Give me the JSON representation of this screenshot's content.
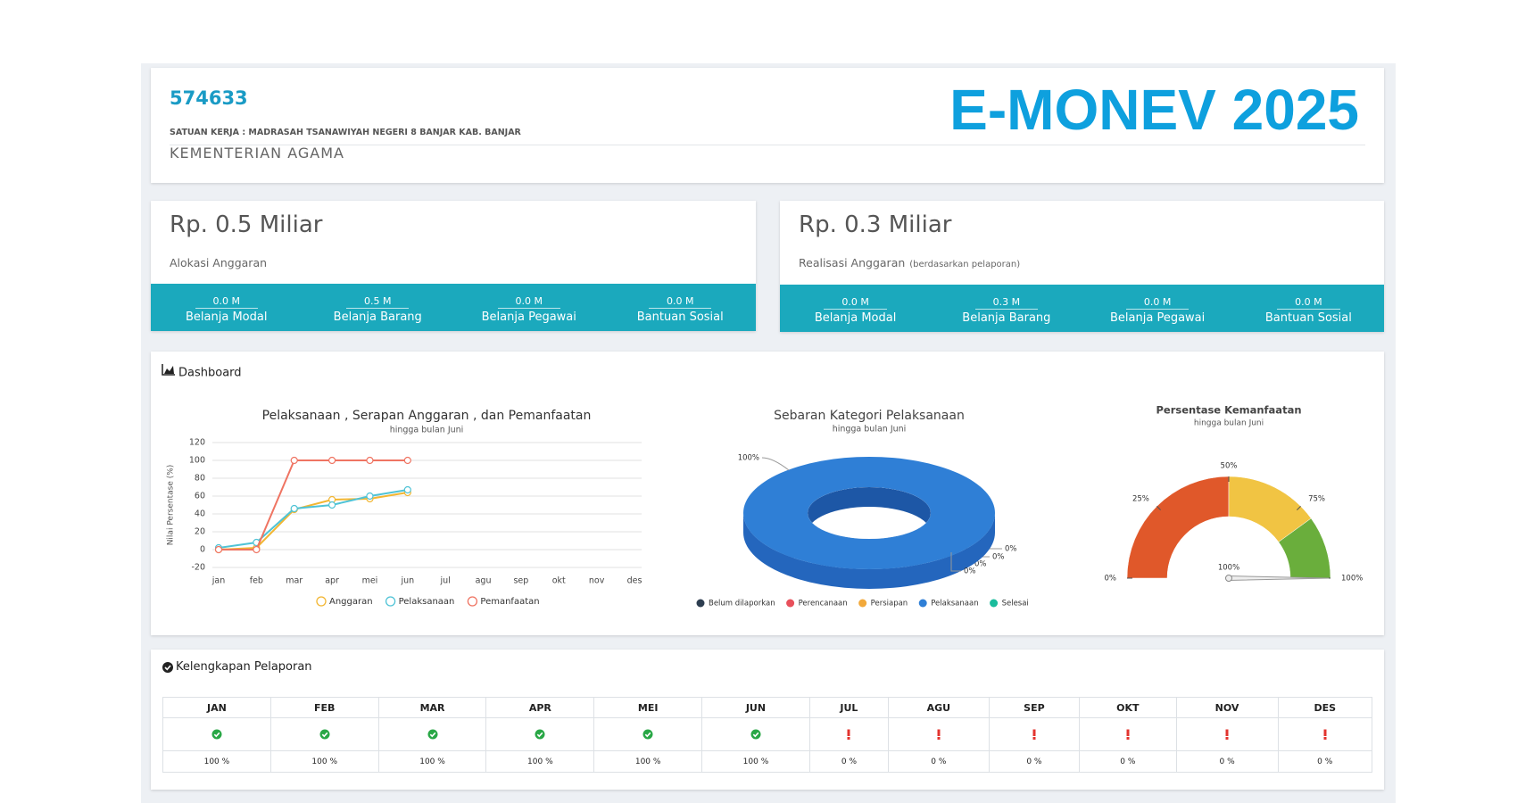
{
  "header": {
    "code": "574633",
    "unit": "SATUAN KERJA : MADRASAH TSANAWIYAH NEGERI 8 BANJAR KAB. BANJAR",
    "ministry": "KEMENTERIAN AGAMA",
    "brand": "E-MONEV 2025"
  },
  "cards": [
    {
      "amount": "Rp. 0.5 Miliar",
      "label": "Alokasi Anggaran",
      "items": [
        {
          "value": "0.0 M",
          "label": "Belanja Modal"
        },
        {
          "value": "0.5 M",
          "label": "Belanja Barang"
        },
        {
          "value": "0.0 M",
          "label": "Belanja Pegawai"
        },
        {
          "value": "0.0 M",
          "label": "Bantuan Sosial"
        }
      ]
    },
    {
      "amount": "Rp. 0.3 Miliar",
      "label": "Realisasi Anggaran",
      "note": "(berdasarkan pelaporan)",
      "items": [
        {
          "value": "0.0 M",
          "label": "Belanja Modal"
        },
        {
          "value": "0.3 M",
          "label": "Belanja Barang"
        },
        {
          "value": "0.0 M",
          "label": "Belanja Pegawai"
        },
        {
          "value": "0.0 M",
          "label": "Bantuan Sosial"
        }
      ]
    }
  ],
  "dashboard": {
    "title": "Dashboard"
  },
  "chart_data": [
    {
      "type": "line",
      "title": "Pelaksanaan , Serapan Anggaran , dan Pemanfaatan",
      "subtitle": "hingga bulan Juni",
      "y_label": "Nilai Persentase (%)",
      "categories": [
        "jan",
        "feb",
        "mar",
        "apr",
        "mei",
        "jun",
        "jul",
        "agu",
        "sep",
        "okt",
        "nov",
        "des"
      ],
      "ylim": [
        -20,
        120
      ],
      "yticks": [
        -20,
        0,
        20,
        40,
        60,
        80,
        100,
        120
      ],
      "grid": true,
      "series": [
        {
          "name": "Anggaran",
          "color": "#f2b632",
          "values": [
            0,
            2,
            45,
            56,
            57,
            64,
            null,
            null,
            null,
            null,
            null,
            null
          ]
        },
        {
          "name": "Pelaksanaan",
          "color": "#4fc3d6",
          "values": [
            2,
            8,
            46,
            50,
            60,
            67,
            null,
            null,
            null,
            null,
            null,
            null
          ]
        },
        {
          "name": "Pemanfaatan",
          "color": "#ef7462",
          "values": [
            0,
            0,
            100,
            100,
            100,
            100,
            null,
            null,
            null,
            null,
            null,
            null
          ]
        }
      ]
    },
    {
      "type": "pie",
      "title": "Sebaran Kategori Pelaksanaan",
      "subtitle": "hingga bulan Juni",
      "categories": [
        "Belum dilaporkan",
        "Perencanaan",
        "Persiapan",
        "Pelaksanaan",
        "Selesai"
      ],
      "values": [
        0,
        0,
        0,
        100,
        0
      ],
      "value_labels": [
        "0%",
        "0%",
        "0%",
        "100%",
        "0%"
      ],
      "colors": [
        "#2d3e50",
        "#e8505b",
        "#f2a93b",
        "#2f7fd6",
        "#1abc9c"
      ]
    },
    {
      "type": "gauge",
      "title": "Persentase Kemanfaatan",
      "subtitle": "hingga bulan Juni",
      "value": 100,
      "value_label": "100%",
      "ylim": [
        0,
        100
      ],
      "yticks": [
        {
          "value": 0,
          "label": "0%"
        },
        {
          "value": 25,
          "label": "25%"
        },
        {
          "value": 50,
          "label": "50%"
        },
        {
          "value": 75,
          "label": "75%"
        },
        {
          "value": 100,
          "label": "100%"
        }
      ],
      "bands": [
        {
          "from": 0,
          "to": 50,
          "color": "#e0582a"
        },
        {
          "from": 50,
          "to": 80,
          "color": "#f1c443"
        },
        {
          "from": 80,
          "to": 100,
          "color": "#6aae3c"
        }
      ]
    }
  ],
  "report": {
    "title": "Kelengkapan Pelaporan",
    "months": [
      "JAN",
      "FEB",
      "MAR",
      "APR",
      "MEI",
      "JUN",
      "JUL",
      "AGU",
      "SEP",
      "OKT",
      "NOV",
      "DES"
    ],
    "values": [
      100,
      100,
      100,
      100,
      100,
      100,
      0,
      0,
      0,
      0,
      0,
      0
    ],
    "value_labels": [
      "100 %",
      "100 %",
      "100 %",
      "100 %",
      "100 %",
      "100 %",
      "0 %",
      "0 %",
      "0 %",
      "0 %",
      "0 %",
      "0 %"
    ]
  }
}
